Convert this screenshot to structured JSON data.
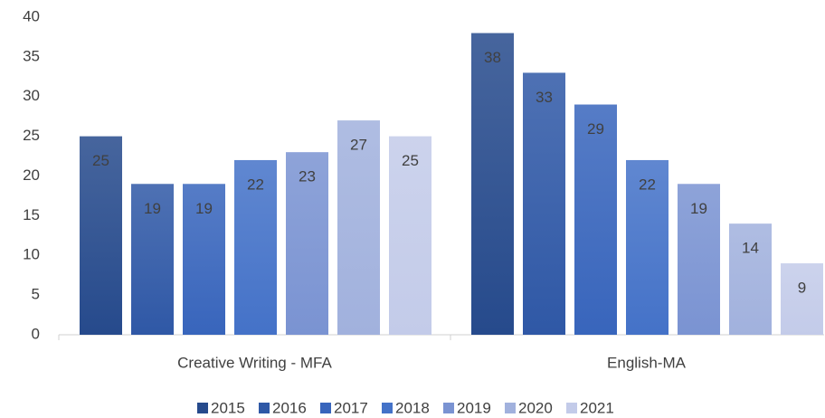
{
  "chart_data": {
    "type": "bar",
    "categories": [
      "Creative Writing - MFA",
      "English-MA"
    ],
    "series": [
      {
        "name": "2015",
        "color": "#264a8c",
        "values": [
          25,
          38
        ]
      },
      {
        "name": "2016",
        "color": "#2f58a6",
        "values": [
          19,
          33
        ]
      },
      {
        "name": "2017",
        "color": "#3865bc",
        "values": [
          19,
          29
        ]
      },
      {
        "name": "2018",
        "color": "#4472c8",
        "values": [
          22,
          22
        ]
      },
      {
        "name": "2019",
        "color": "#7a93d2",
        "values": [
          23,
          19
        ]
      },
      {
        "name": "2020",
        "color": "#a1b1dd",
        "values": [
          27,
          14
        ]
      },
      {
        "name": "2021",
        "color": "#c3cbe9",
        "values": [
          25,
          9
        ]
      }
    ],
    "ylim": [
      0,
      40
    ],
    "yticks": [
      0,
      5,
      10,
      15,
      20,
      25,
      30,
      35,
      40
    ],
    "grid": false,
    "legend": "bottom"
  }
}
